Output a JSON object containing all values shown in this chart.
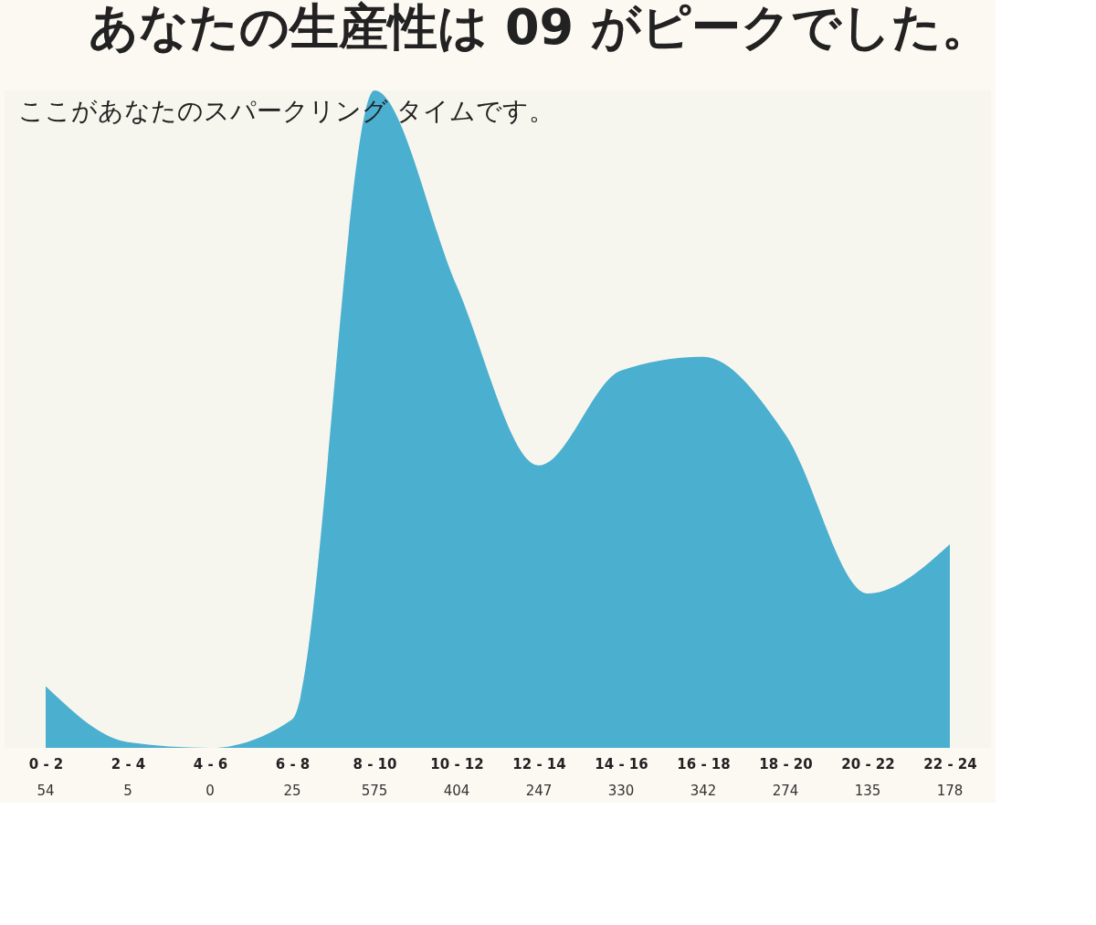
{
  "chart_data": {
    "type": "area",
    "title": "あなたの生産性は 09 がピークでした。",
    "annotations": [
      "ここがあなたのスパークリング タイムです。"
    ],
    "categories": [
      "0 - 2",
      "2 - 4",
      "4 - 6",
      "6 - 8",
      "8 - 10",
      "10 - 12",
      "12 - 14",
      "14 - 16",
      "16 - 18",
      "18 - 20",
      "20 - 22",
      "22 - 24"
    ],
    "values": [
      54,
      5,
      0,
      25,
      575,
      404,
      247,
      330,
      342,
      274,
      135,
      178
    ],
    "color": "#4bafd0",
    "data_labels": true
  }
}
